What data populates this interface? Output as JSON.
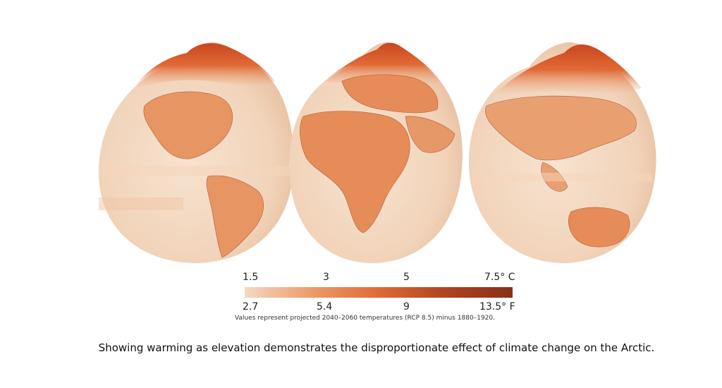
{
  "legend": {
    "celsius_ticks": [
      "1.5",
      "3",
      "5",
      "7.5° C"
    ],
    "fahrenheit_ticks": [
      "2.7",
      "5.4",
      "9",
      "13.5° F"
    ],
    "note": "Values represent projected 2040–2060 temperatures (RCP 8.5) minus 1880–1920.",
    "gradient_colors": [
      "#f3d9c4",
      "#ee9a6a",
      "#e06a36",
      "#b04420",
      "#8a2f18"
    ]
  },
  "caption": "Showing warming as elevation demonstrates the disproportionate effect of climate change on the Arctic.",
  "colors": {
    "ocean": "#f4dcc6",
    "land": "#e7905f",
    "arctic": "#d65a2c"
  }
}
